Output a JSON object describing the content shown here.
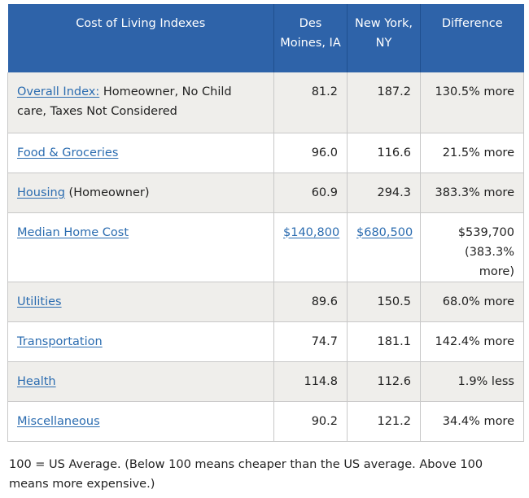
{
  "table": {
    "headers": [
      "Cost of Living Indexes",
      "Des Moines, IA",
      "New York, NY",
      "Difference"
    ],
    "rows": [
      {
        "label_link": "Overall Index:",
        "label_rest": " Homeowner, No Child care, Taxes Not Considered",
        "a": "81.2",
        "b": "187.2",
        "diff": "130.5% more",
        "diff2": ""
      },
      {
        "label_link": "Food & Groceries",
        "label_rest": "",
        "a": "96.0",
        "b": "116.6",
        "diff": "21.5% more",
        "diff2": ""
      },
      {
        "label_link": "Housing",
        "label_rest": " (Homeowner)",
        "a": "60.9",
        "b": "294.3",
        "diff": "383.3% more",
        "diff2": ""
      },
      {
        "label_link": "Median Home Cost",
        "label_rest": "",
        "a": "$140,800",
        "b": "$680,500",
        "diff": "$539,700",
        "diff2": "(383.3% more)"
      },
      {
        "label_link": "Utilities",
        "label_rest": "",
        "a": "89.6",
        "b": "150.5",
        "diff": "68.0% more",
        "diff2": ""
      },
      {
        "label_link": "Transportation",
        "label_rest": "",
        "a": "74.7",
        "b": "181.1",
        "diff": "142.4% more",
        "diff2": ""
      },
      {
        "label_link": "Health",
        "label_rest": "",
        "a": "114.8",
        "b": "112.6",
        "diff": "1.9% less",
        "diff2": ""
      },
      {
        "label_link": "Miscellaneous",
        "label_rest": "",
        "a": "90.2",
        "b": "121.2",
        "diff": "34.4% more",
        "diff2": ""
      }
    ]
  },
  "footnote": "100 = US Average. (Below 100 means cheaper than the US average. Above 100 means more expensive.)",
  "colors": {
    "header_bg": "#2e63a9",
    "link": "#2b6cb0",
    "row_shade": "#efeeeb"
  }
}
